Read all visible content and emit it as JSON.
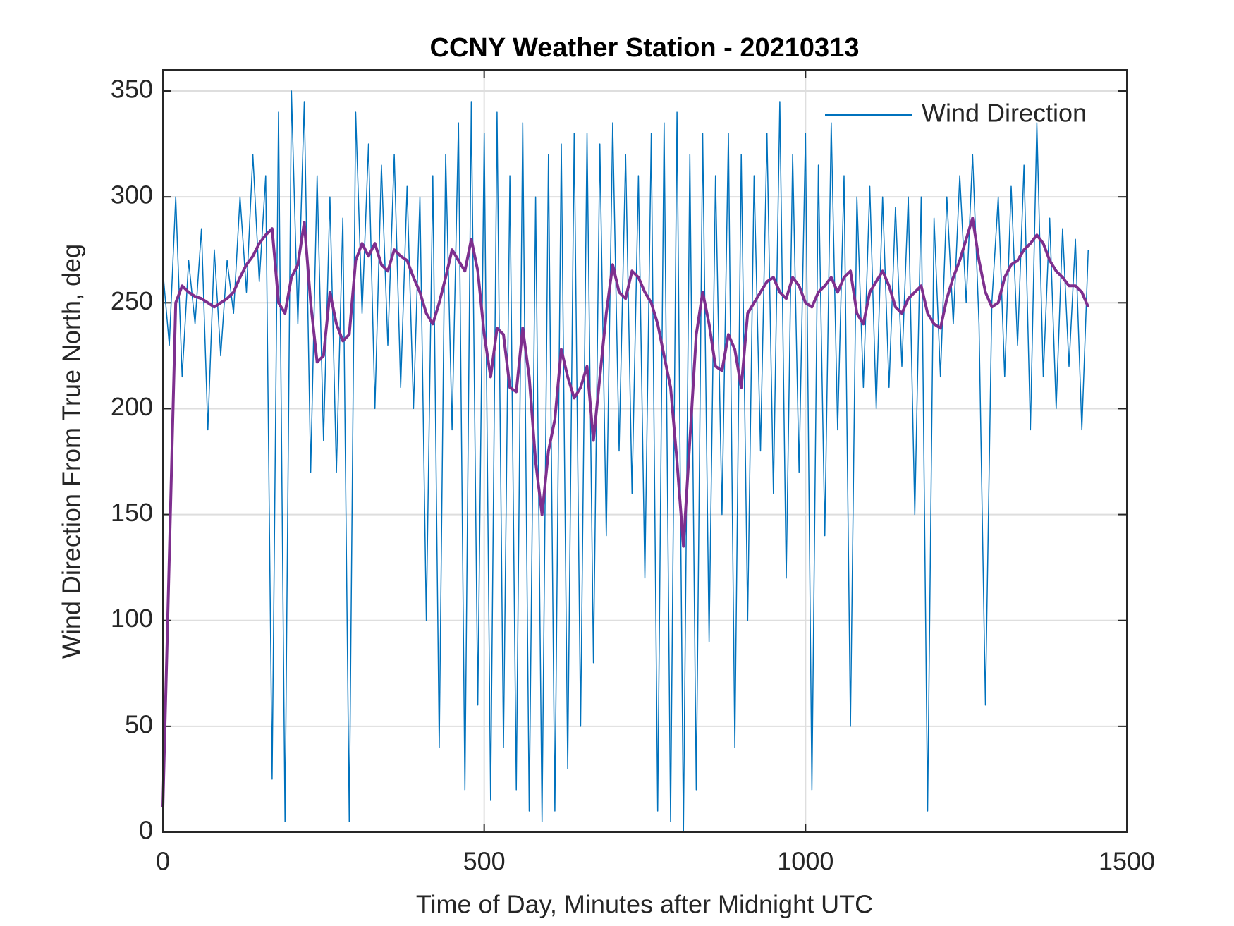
{
  "chart_data": {
    "type": "line",
    "title": "CCNY Weather Station - 20210313",
    "xlabel": "Time of Day, Minutes after Midnight UTC",
    "ylabel": "Wind Direction From True North, deg",
    "x": [
      0,
      10,
      20,
      30,
      40,
      50,
      60,
      70,
      80,
      90,
      100,
      110,
      120,
      130,
      140,
      150,
      160,
      170,
      180,
      190,
      200,
      210,
      220,
      230,
      240,
      250,
      260,
      270,
      280,
      290,
      300,
      310,
      320,
      330,
      340,
      350,
      360,
      370,
      380,
      390,
      400,
      410,
      420,
      430,
      440,
      450,
      460,
      470,
      480,
      490,
      500,
      510,
      520,
      530,
      540,
      550,
      560,
      570,
      580,
      590,
      600,
      610,
      620,
      630,
      640,
      650,
      660,
      670,
      680,
      690,
      700,
      710,
      720,
      730,
      740,
      750,
      760,
      770,
      780,
      790,
      800,
      810,
      820,
      830,
      840,
      850,
      860,
      870,
      880,
      890,
      900,
      910,
      920,
      930,
      940,
      950,
      960,
      970,
      980,
      990,
      1000,
      1010,
      1020,
      1030,
      1040,
      1050,
      1060,
      1070,
      1080,
      1090,
      1100,
      1110,
      1120,
      1130,
      1140,
      1150,
      1160,
      1170,
      1180,
      1190,
      1200,
      1210,
      1220,
      1230,
      1240,
      1250,
      1260,
      1270,
      1280,
      1290,
      1300,
      1310,
      1320,
      1330,
      1340,
      1350,
      1360,
      1370,
      1380,
      1390,
      1400,
      1410,
      1420,
      1430,
      1440
    ],
    "series": [
      {
        "name": "Wind Direction",
        "color": "#0072bd",
        "width": 1.5,
        "values": [
          265,
          230,
          300,
          215,
          270,
          240,
          285,
          190,
          275,
          225,
          270,
          245,
          300,
          255,
          320,
          260,
          310,
          25,
          340,
          5,
          350,
          240,
          345,
          170,
          310,
          185,
          300,
          170,
          290,
          5,
          340,
          245,
          325,
          200,
          315,
          230,
          320,
          210,
          305,
          200,
          300,
          100,
          310,
          40,
          320,
          190,
          335,
          20,
          345,
          60,
          330,
          15,
          340,
          40,
          310,
          20,
          335,
          10,
          300,
          5,
          320,
          10,
          325,
          30,
          330,
          50,
          330,
          80,
          325,
          140,
          335,
          180,
          320,
          160,
          310,
          120,
          330,
          10,
          335,
          5,
          340,
          0,
          320,
          20,
          330,
          90,
          310,
          150,
          330,
          40,
          320,
          100,
          310,
          180,
          330,
          160,
          345,
          120,
          320,
          170,
          330,
          20,
          315,
          140,
          335,
          190,
          310,
          50,
          300,
          210,
          305,
          200,
          300,
          210,
          295,
          220,
          300,
          150,
          300,
          10,
          290,
          215,
          300,
          240,
          310,
          250,
          320,
          240,
          60,
          250,
          300,
          215,
          305,
          230,
          315,
          190,
          335,
          215,
          290,
          200,
          285,
          220,
          280,
          190,
          275
        ]
      },
      {
        "color": "#7e2f8e",
        "width": 4,
        "values": [
          12,
          130,
          250,
          258,
          255,
          253,
          252,
          250,
          248,
          250,
          252,
          255,
          262,
          268,
          272,
          278,
          282,
          285,
          250,
          245,
          262,
          268,
          288,
          250,
          222,
          225,
          255,
          240,
          232,
          235,
          270,
          278,
          272,
          278,
          268,
          265,
          275,
          272,
          270,
          262,
          255,
          245,
          240,
          250,
          262,
          275,
          270,
          265,
          280,
          265,
          235,
          215,
          238,
          235,
          210,
          208,
          238,
          215,
          175,
          150,
          180,
          195,
          228,
          215,
          205,
          210,
          220,
          185,
          215,
          245,
          268,
          255,
          252,
          265,
          262,
          255,
          250,
          240,
          225,
          210,
          175,
          135,
          185,
          235,
          255,
          240,
          220,
          218,
          235,
          228,
          210,
          245,
          250,
          255,
          260,
          262,
          255,
          252,
          262,
          258,
          250,
          248,
          255,
          258,
          262,
          255,
          262,
          265,
          245,
          240,
          255,
          260,
          265,
          258,
          248,
          245,
          252,
          255,
          258,
          245,
          240,
          238,
          252,
          262,
          270,
          280,
          290,
          270,
          255,
          248,
          250,
          262,
          268,
          270,
          275,
          278,
          282,
          278,
          270,
          265,
          262,
          258,
          258,
          255,
          248
        ]
      }
    ],
    "xlim": [
      0,
      1500
    ],
    "xticks": [
      0,
      500,
      1000,
      1500
    ],
    "ylim": [
      0,
      360
    ],
    "yticks": [
      0,
      50,
      100,
      150,
      200,
      250,
      300,
      350
    ],
    "grid": true,
    "legend": "upper right"
  }
}
